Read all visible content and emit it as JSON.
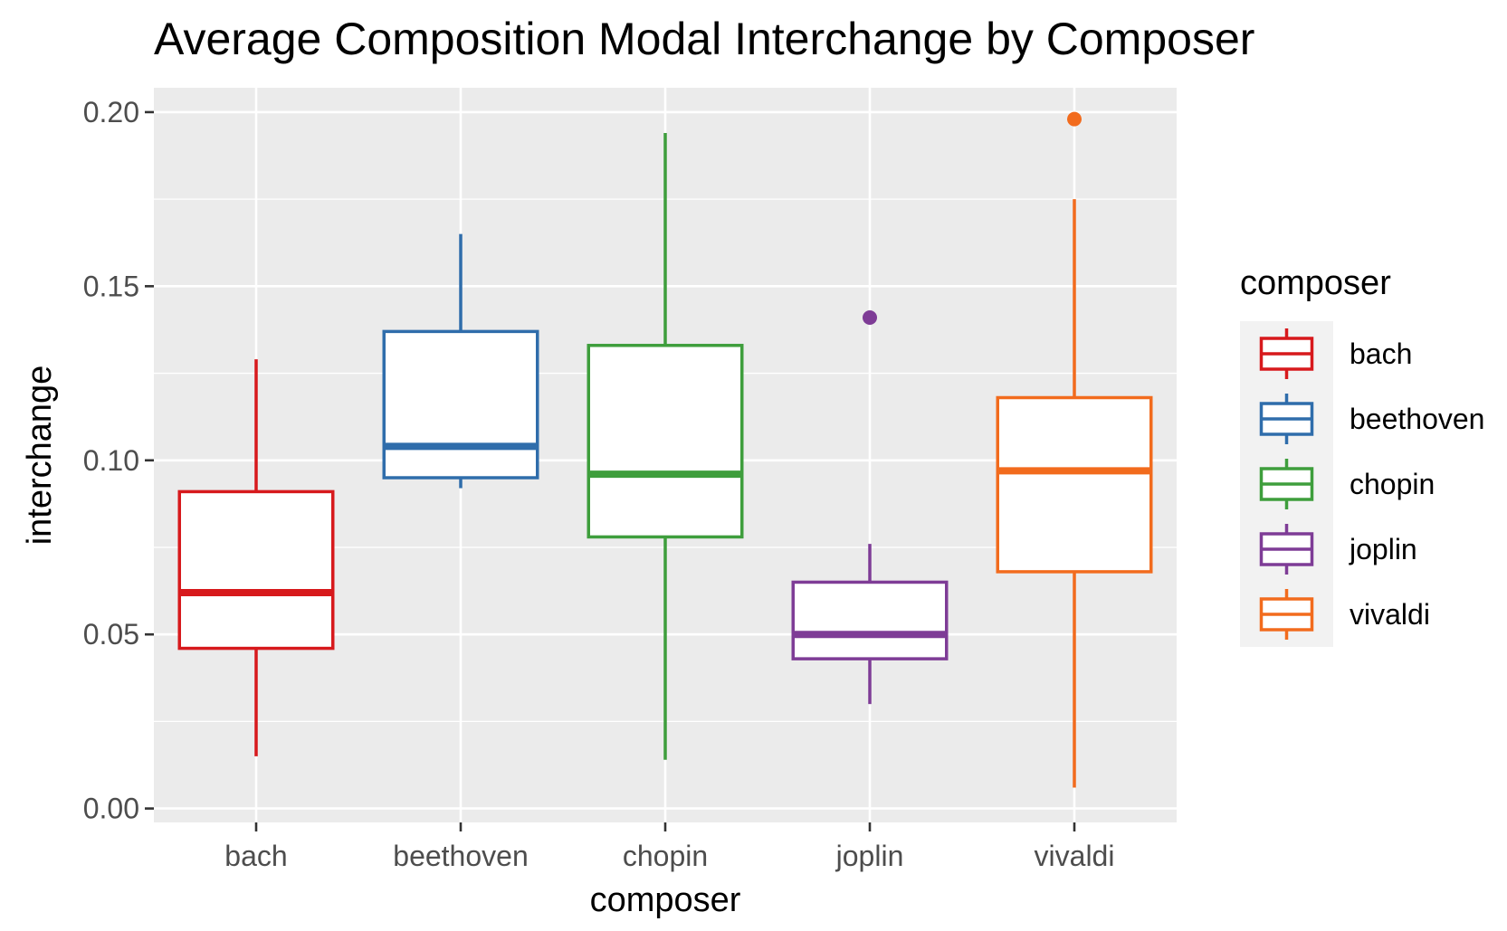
{
  "chart_data": {
    "type": "boxplot",
    "title": "Average Composition Modal Interchange by Composer",
    "xlabel": "composer",
    "ylabel": "interchange",
    "ylim": [
      -0.004,
      0.207
    ],
    "y_ticks": [
      "0.00",
      "0.05",
      "0.10",
      "0.15",
      "0.20"
    ],
    "y_tick_values": [
      0.0,
      0.05,
      0.1,
      0.15,
      0.2
    ],
    "y_minor_values": [
      0.025,
      0.075,
      0.125,
      0.175
    ],
    "categories": [
      "bach",
      "beethoven",
      "chopin",
      "joplin",
      "vivaldi"
    ],
    "grid": true,
    "legend_position": "right",
    "legend_title": "composer",
    "series": [
      {
        "name": "bach",
        "color": "#D7191C",
        "whisker_low": 0.015,
        "q1": 0.046,
        "median": 0.062,
        "q3": 0.091,
        "whisker_high": 0.129,
        "outliers": []
      },
      {
        "name": "beethoven",
        "color": "#2F6DAB",
        "whisker_low": 0.092,
        "q1": 0.095,
        "median": 0.104,
        "q3": 0.137,
        "whisker_high": 0.165,
        "outliers": []
      },
      {
        "name": "chopin",
        "color": "#3E9E3C",
        "whisker_low": 0.014,
        "q1": 0.078,
        "median": 0.096,
        "q3": 0.133,
        "whisker_high": 0.194,
        "outliers": []
      },
      {
        "name": "joplin",
        "color": "#7E3C96",
        "whisker_low": 0.03,
        "q1": 0.043,
        "median": 0.05,
        "q3": 0.065,
        "whisker_high": 0.076,
        "outliers": [
          0.141
        ]
      },
      {
        "name": "vivaldi",
        "color": "#F26B1D",
        "whisker_low": 0.006,
        "q1": 0.068,
        "median": 0.097,
        "q3": 0.118,
        "whisker_high": 0.175,
        "outliers": [
          0.198
        ]
      }
    ]
  }
}
